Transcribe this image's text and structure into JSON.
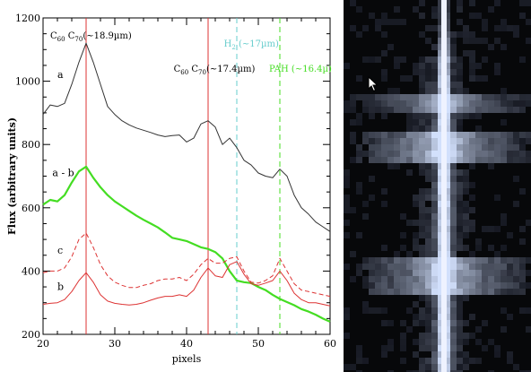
{
  "chart_data": {
    "type": "line",
    "title": "",
    "xlabel": "pixels",
    "ylabel": "Flux (arbitrary units)",
    "xlim": [
      20,
      60
    ],
    "ylim": [
      200,
      1200
    ],
    "xticks": [
      20,
      30,
      40,
      50,
      60
    ],
    "yticks": [
      200,
      400,
      600,
      800,
      1000,
      1200
    ],
    "grid": false,
    "series": [
      {
        "name": "a",
        "color": "#333333",
        "style": "solid",
        "x": [
          20,
          21,
          22,
          23,
          24,
          25,
          26,
          27,
          28,
          29,
          30,
          31,
          32,
          33,
          34,
          35,
          36,
          37,
          38,
          39,
          40,
          41,
          42,
          43,
          44,
          45,
          46,
          47,
          48,
          49,
          50,
          51,
          52,
          53,
          54,
          55,
          56,
          57,
          58,
          59,
          60
        ],
        "y": [
          895,
          925,
          920,
          930,
          990,
          1060,
          1120,
          1060,
          990,
          920,
          895,
          875,
          862,
          852,
          845,
          838,
          830,
          825,
          828,
          830,
          808,
          820,
          865,
          875,
          855,
          800,
          820,
          790,
          750,
          735,
          710,
          700,
          695,
          722,
          700,
          640,
          600,
          580,
          555,
          540,
          525
        ]
      },
      {
        "name": "a - b",
        "color": "#44dd22",
        "style": "solid",
        "x": [
          20,
          21,
          22,
          23,
          24,
          25,
          26,
          27,
          28,
          29,
          30,
          31,
          32,
          33,
          34,
          35,
          36,
          37,
          38,
          39,
          40,
          41,
          42,
          43,
          44,
          45,
          46,
          47,
          48,
          49,
          50,
          51,
          52,
          53,
          54,
          55,
          56,
          57,
          58,
          59,
          60
        ],
        "y": [
          610,
          625,
          620,
          640,
          680,
          715,
          730,
          695,
          665,
          640,
          620,
          605,
          590,
          575,
          562,
          550,
          538,
          522,
          505,
          500,
          495,
          485,
          475,
          470,
          460,
          440,
          400,
          370,
          365,
          362,
          350,
          340,
          325,
          312,
          302,
          292,
          280,
          272,
          262,
          250,
          240
        ]
      },
      {
        "name": "c",
        "color": "#dd3333",
        "style": "dashed",
        "x": [
          20,
          21,
          22,
          23,
          24,
          25,
          26,
          27,
          28,
          29,
          30,
          31,
          32,
          33,
          34,
          35,
          36,
          37,
          38,
          39,
          40,
          41,
          42,
          43,
          44,
          45,
          46,
          47,
          48,
          49,
          50,
          51,
          52,
          53,
          54,
          55,
          56,
          57,
          58,
          59,
          60
        ],
        "y": [
          395,
          400,
          400,
          410,
          445,
          500,
          520,
          475,
          420,
          385,
          365,
          355,
          348,
          348,
          355,
          360,
          370,
          375,
          375,
          380,
          370,
          390,
          420,
          440,
          425,
          425,
          440,
          445,
          400,
          365,
          362,
          370,
          385,
          440,
          400,
          360,
          340,
          335,
          330,
          325,
          320
        ]
      },
      {
        "name": "b",
        "color": "#dd3333",
        "style": "solid",
        "x": [
          20,
          21,
          22,
          23,
          24,
          25,
          26,
          27,
          28,
          29,
          30,
          31,
          32,
          33,
          34,
          35,
          36,
          37,
          38,
          39,
          40,
          41,
          42,
          43,
          44,
          45,
          46,
          47,
          48,
          49,
          50,
          51,
          52,
          53,
          54,
          55,
          56,
          57,
          58,
          59,
          60
        ],
        "y": [
          295,
          298,
          300,
          310,
          335,
          370,
          395,
          365,
          325,
          305,
          298,
          295,
          293,
          295,
          300,
          308,
          315,
          320,
          320,
          325,
          320,
          340,
          380,
          410,
          385,
          380,
          420,
          430,
          390,
          360,
          355,
          362,
          370,
          400,
          370,
          330,
          310,
          300,
          300,
          295,
          290
        ]
      }
    ],
    "series_labels": [
      {
        "text": "a",
        "x": 22.0,
        "y": 1010
      },
      {
        "text": "a - b",
        "x": 21.3,
        "y": 700
      },
      {
        "text": "c",
        "x": 22.0,
        "y": 455
      },
      {
        "text": "b",
        "x": 22.0,
        "y": 340
      }
    ],
    "vlines": [
      {
        "x": 26,
        "color": "#dd3333",
        "style": "solid"
      },
      {
        "x": 43,
        "color": "#dd3333",
        "style": "solid"
      },
      {
        "x": 47,
        "color": "#66cccc",
        "style": "dashed"
      },
      {
        "x": 53,
        "color": "#44dd22",
        "style": "dashed"
      }
    ],
    "annotations": [
      {
        "id": "c60c70-189",
        "color": "#000000",
        "x": 21.0,
        "y": 1135,
        "parts": [
          [
            "C",
            ""
          ],
          [
            "60",
            "sub"
          ],
          [
            " C",
            ""
          ],
          [
            "70",
            "sub"
          ],
          [
            "(~18.9µm)",
            ""
          ]
        ]
      },
      {
        "id": "c60c70-174",
        "color": "#000000",
        "x": 38.2,
        "y": 1030,
        "parts": [
          [
            "C",
            ""
          ],
          [
            "60",
            "sub"
          ],
          [
            " C",
            ""
          ],
          [
            "70",
            "sub"
          ],
          [
            "(~17.4µm)",
            ""
          ]
        ]
      },
      {
        "id": "h2",
        "color": "#66cccc",
        "x": 45.2,
        "y": 1110,
        "parts": [
          [
            "H",
            ""
          ],
          [
            "2",
            "sub"
          ],
          [
            " (~17µm)",
            ""
          ]
        ]
      },
      {
        "id": "pah",
        "color": "#44dd22",
        "x": 51.5,
        "y": 1030,
        "parts": [
          [
            "PAH (~16.4µ)",
            ""
          ]
        ]
      }
    ]
  },
  "image_panel": {
    "type": "grayscale-spectrum-image",
    "background": "#07080a",
    "tint": "#b8c4ea"
  }
}
